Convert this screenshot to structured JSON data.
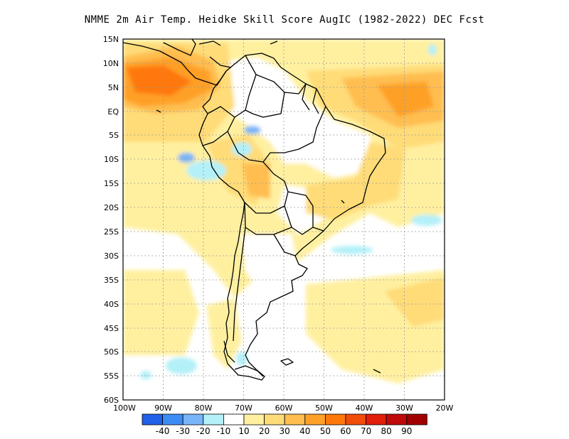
{
  "title": "NMME  2m Air Temp. Heidke Skill Score AugIC (1982-2022) DEC Fcst",
  "map": {
    "lat_labels": [
      "15N",
      "10N",
      "5N",
      "EQ",
      "5S",
      "10S",
      "15S",
      "20S",
      "25S",
      "30S",
      "35S",
      "40S",
      "45S",
      "50S",
      "55S",
      "60S"
    ],
    "lon_labels": [
      "100W",
      "90W",
      "80W",
      "70W",
      "60W",
      "50W",
      "40W",
      "30W",
      "20W"
    ],
    "grid": "dotted"
  },
  "colorbar": {
    "colors": [
      "#2060e8",
      "#3c8cf4",
      "#78b4f8",
      "#b4f0f8",
      "#ffffff",
      "#fff0a0",
      "#ffdc78",
      "#ffbe50",
      "#ffa028",
      "#ff780a",
      "#f04c0a",
      "#e01e0a",
      "#c00a0a",
      "#a00000"
    ],
    "labels": [
      "-40",
      "-30",
      "-20",
      "-10",
      "10",
      "20",
      "30",
      "40",
      "50",
      "60",
      "70",
      "80",
      "90"
    ]
  }
}
